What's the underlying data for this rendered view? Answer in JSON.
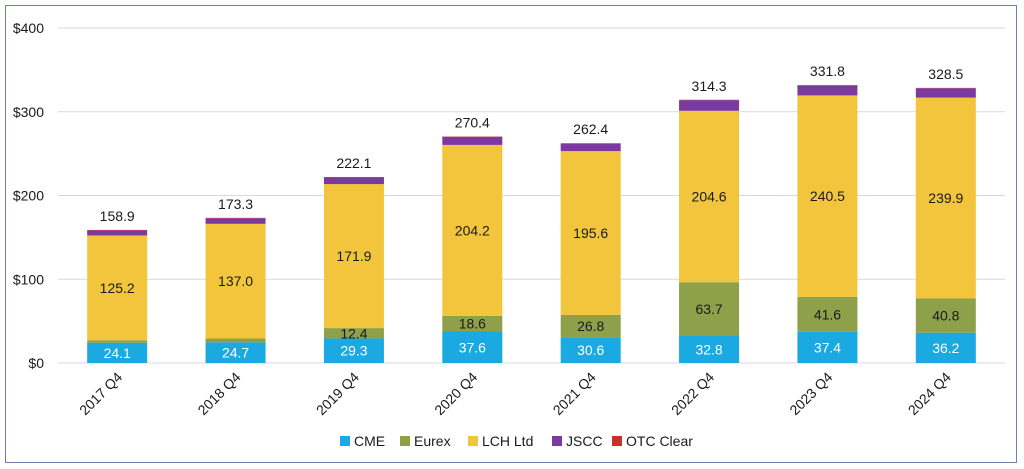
{
  "chart_data": {
    "type": "bar",
    "stacked": true,
    "categories": [
      "2017 Q4",
      "2018 Q4",
      "2019 Q4",
      "2020 Q4",
      "2021 Q4",
      "2022 Q4",
      "2023 Q4",
      "2024 Q4"
    ],
    "series": [
      {
        "name": "CME",
        "color": "#1aa9e0",
        "values": [
          24.1,
          24.7,
          29.3,
          37.6,
          30.6,
          32.8,
          37.4,
          36.2
        ]
      },
      {
        "name": "Eurex",
        "color": "#8ea14a",
        "values": [
          3.0,
          4.5,
          12.4,
          18.6,
          26.8,
          63.7,
          41.6,
          40.8
        ]
      },
      {
        "name": "LCH Ltd",
        "color": "#f2c53c",
        "values": [
          125.2,
          137.0,
          171.9,
          204.2,
          195.6,
          204.6,
          240.5,
          239.9
        ]
      },
      {
        "name": "JSCC",
        "color": "#7b3a9e",
        "values": [
          6.0,
          6.5,
          8.0,
          9.5,
          9.0,
          12.8,
          12.0,
          11.2
        ]
      },
      {
        "name": "OTC Clear",
        "color": "#c9302c",
        "values": [
          0.6,
          0.6,
          0.5,
          0.5,
          0.4,
          0.4,
          0.3,
          0.4
        ]
      }
    ],
    "segment_labels": {
      "CME": [
        "24.1",
        "24.7",
        "29.3",
        "37.6",
        "30.6",
        "32.8",
        "37.4",
        "36.2"
      ],
      "Eurex": [
        "",
        "",
        "12.4",
        "18.6",
        "26.8",
        "63.7",
        "41.6",
        "40.8"
      ],
      "LCH Ltd": [
        "125.2",
        "137.0",
        "171.9",
        "204.2",
        "195.6",
        "204.6",
        "240.5",
        "239.9"
      ]
    },
    "totals": [
      "158.9",
      "173.3",
      "222.1",
      "270.4",
      "262.4",
      "314.3",
      "331.8",
      "328.5"
    ],
    "yticks": [
      "$0",
      "$100",
      "$200",
      "$300",
      "$400"
    ],
    "ylim": [
      0,
      400
    ],
    "grid": true,
    "legend_position": "bottom"
  }
}
